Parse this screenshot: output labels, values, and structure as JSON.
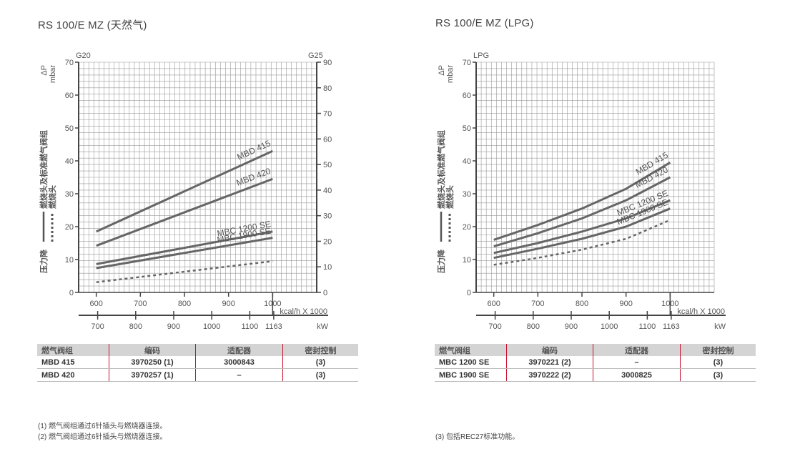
{
  "left": {
    "title": "RS 100/E MZ (天然气)",
    "left_axis_label": "G20",
    "right_axis_label": "G25",
    "y_label_symbol": "ΔP",
    "y_label_unit": "mbar",
    "y_side_title_1": "压力降",
    "y_side_title_2": "燃烧头及标准燃气阀组",
    "y_side_title_3": "燃烧头",
    "x_top_unit": "kcal/h X 1000",
    "x_bottom_unit": "kW",
    "table": {
      "headers": [
        "燃气阀组",
        "编码",
        "适配器",
        "密封控制"
      ],
      "rows": [
        [
          "MBD 415",
          "3970250 (1)",
          "3000843",
          "(3)"
        ],
        [
          "MBD 420",
          "3970257 (1)",
          "–",
          "(3)"
        ]
      ]
    },
    "notes": [
      "(1) 燃气阀组通过6针插头与燃烧器连接。",
      "(2) 燃气阀组通过6针插头与燃烧器连接。"
    ]
  },
  "right": {
    "title": "RS 100/E MZ (LPG)",
    "left_axis_label": "LPG",
    "y_label_symbol": "ΔP",
    "y_label_unit": "mbar",
    "y_side_title_1": "压力降",
    "y_side_title_2": "燃烧头及标准燃气阀组",
    "y_side_title_3": "燃烧头",
    "x_top_unit": "kcal/h X 1000",
    "x_bottom_unit": "kW",
    "table": {
      "headers": [
        "燃气阀组",
        "编码",
        "适配器",
        "密封控制"
      ],
      "rows": [
        [
          "MBC 1200 SE",
          "3970221 (2)",
          "–",
          "(3)"
        ],
        [
          "MBC 1900 SE",
          "3970222 (2)",
          "3000825",
          "(3)"
        ]
      ]
    },
    "notes": [
      "(3) 包括REC27标准功能。"
    ]
  },
  "chart_data": [
    {
      "type": "line",
      "title": "RS 100/E MZ (天然气)",
      "xlabel": "kcal/h X 1000",
      "x2label": "kW",
      "ylabel": "ΔP mbar",
      "xlim": [
        560,
        1100
      ],
      "ylim": [
        0,
        70
      ],
      "y2lim": [
        0,
        90
      ],
      "grid": true,
      "x_ticks": [
        600,
        700,
        800,
        900,
        1000
      ],
      "x2_ticks": [
        700,
        800,
        900,
        1000,
        1100,
        1163
      ],
      "y_ticks": [
        0,
        10,
        20,
        30,
        40,
        50,
        60,
        70
      ],
      "y2_ticks": [
        0,
        10,
        20,
        30,
        40,
        50,
        60,
        70,
        80,
        90
      ],
      "series": [
        {
          "name": "MBD 415",
          "style": "solid",
          "x": [
            600,
            1000
          ],
          "y": [
            18.5,
            43
          ]
        },
        {
          "name": "MBD 420",
          "style": "solid",
          "x": [
            600,
            1000
          ],
          "y": [
            14.2,
            34.5
          ]
        },
        {
          "name": "MBC 1200 SE",
          "style": "solid",
          "x": [
            600,
            1000
          ],
          "y": [
            8.6,
            18.5
          ]
        },
        {
          "name": "MBC 1900 SE",
          "style": "solid",
          "x": [
            600,
            1000
          ],
          "y": [
            7.4,
            16.6
          ]
        },
        {
          "style": "dashed",
          "x": [
            600,
            1000
          ],
          "y": [
            3.1,
            9.5
          ]
        }
      ]
    },
    {
      "type": "line",
      "title": "RS 100/E MZ (LPG)",
      "xlabel": "kcal/h X 1000",
      "x2label": "kW",
      "ylabel": "ΔP mbar",
      "xlim": [
        560,
        1100
      ],
      "ylim": [
        0,
        70
      ],
      "grid": true,
      "x_ticks": [
        600,
        700,
        800,
        900,
        1000
      ],
      "x2_ticks": [
        700,
        800,
        900,
        1000,
        1100,
        1163
      ],
      "y_ticks": [
        0,
        10,
        20,
        30,
        40,
        50,
        60,
        70
      ],
      "series": [
        {
          "name": "MBD 415",
          "style": "solid",
          "x": [
            600,
            700,
            800,
            900,
            1000
          ],
          "y": [
            16,
            20.5,
            25.5,
            31.5,
            39.5
          ]
        },
        {
          "name": "MBD 420",
          "style": "solid",
          "x": [
            600,
            700,
            800,
            900,
            1000
          ],
          "y": [
            14,
            18,
            22.5,
            28,
            35
          ]
        },
        {
          "name": "MBC 1200 SE",
          "style": "solid",
          "x": [
            600,
            700,
            800,
            900,
            1000
          ],
          "y": [
            12,
            15,
            18.5,
            22.5,
            28
          ]
        },
        {
          "name": "MBC 1900 SE",
          "style": "solid",
          "x": [
            600,
            700,
            800,
            900,
            1000
          ],
          "y": [
            10.5,
            13.3,
            16.3,
            20,
            25.5
          ]
        },
        {
          "style": "dashed",
          "x": [
            600,
            700,
            800,
            900,
            1000
          ],
          "y": [
            8.4,
            10.5,
            13,
            16.3,
            22
          ]
        }
      ]
    }
  ]
}
